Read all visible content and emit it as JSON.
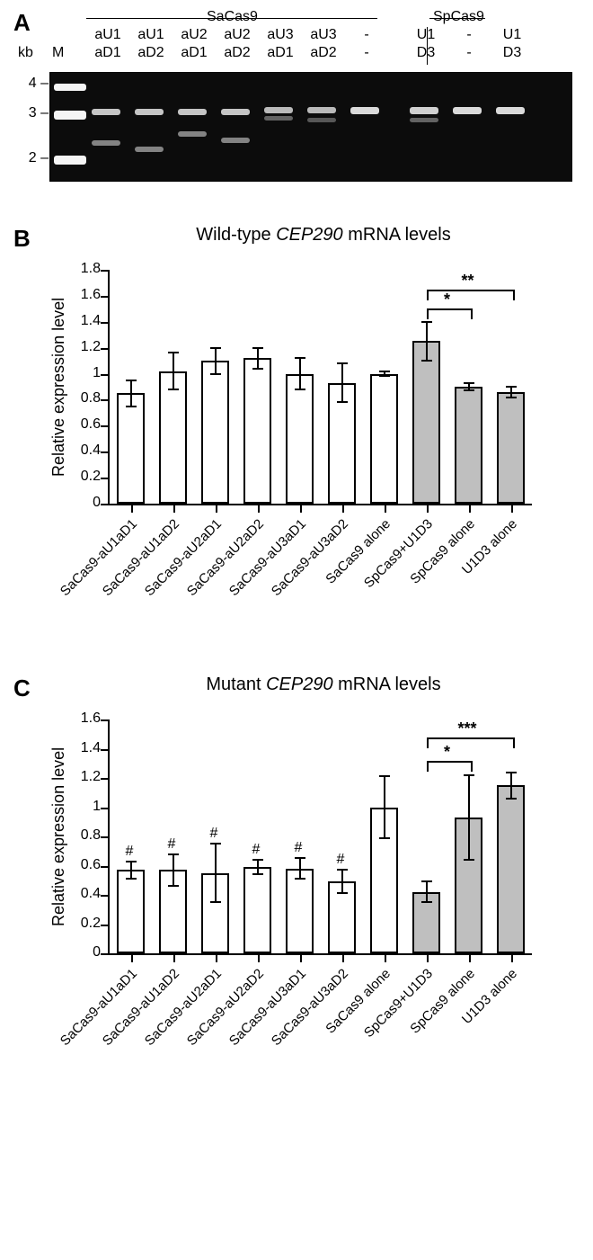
{
  "panelA": {
    "label": "A",
    "header_group_left": "SaCas9",
    "header_group_right": "SpCas9",
    "kb_label": "kb",
    "M_label": "M",
    "row2": [
      "aU1",
      "aU1",
      "aU2",
      "aU2",
      "aU3",
      "aU3",
      "-",
      "U1",
      "-",
      "U1"
    ],
    "row3": [
      "aD1",
      "aD2",
      "aD1",
      "aD2",
      "aD1",
      "aD2",
      "-",
      "D3",
      "-",
      "D3"
    ],
    "ladder_labels": [
      "4",
      "3",
      "2"
    ],
    "ladder_y": [
      12,
      45,
      95
    ],
    "lane_x_start": 42,
    "lane_width": 48,
    "bands": [
      {
        "lane": 1,
        "y": 40,
        "h": 7,
        "int": 0.85
      },
      {
        "lane": 1,
        "y": 75,
        "h": 6,
        "int": 0.55
      },
      {
        "lane": 2,
        "y": 40,
        "h": 7,
        "int": 0.85
      },
      {
        "lane": 2,
        "y": 82,
        "h": 6,
        "int": 0.55
      },
      {
        "lane": 3,
        "y": 40,
        "h": 7,
        "int": 0.85
      },
      {
        "lane": 3,
        "y": 65,
        "h": 6,
        "int": 0.55
      },
      {
        "lane": 4,
        "y": 40,
        "h": 7,
        "int": 0.85
      },
      {
        "lane": 4,
        "y": 72,
        "h": 6,
        "int": 0.55
      },
      {
        "lane": 5,
        "y": 38,
        "h": 7,
        "int": 0.8
      },
      {
        "lane": 5,
        "y": 48,
        "h": 5,
        "int": 0.4
      },
      {
        "lane": 6,
        "y": 38,
        "h": 7,
        "int": 0.8
      },
      {
        "lane": 6,
        "y": 50,
        "h": 5,
        "int": 0.35
      },
      {
        "lane": 7,
        "y": 38,
        "h": 8,
        "int": 0.95
      },
      {
        "lane": 8,
        "y": 38,
        "h": 8,
        "int": 0.9
      },
      {
        "lane": 8,
        "y": 50,
        "h": 5,
        "int": 0.4
      },
      {
        "lane": 9,
        "y": 38,
        "h": 8,
        "int": 0.95
      },
      {
        "lane": 10,
        "y": 38,
        "h": 8,
        "int": 0.95
      }
    ]
  },
  "panelB": {
    "label": "B",
    "title": "Wild-type CEP290 mRNA levels",
    "title_italic_word": "CEP290",
    "ylabel": "Relative expression level",
    "ylim": [
      0,
      1.8
    ],
    "ytick_step": 0.2,
    "categories": [
      "SaCas9-aU1aD1",
      "SaCas9-aU1aD2",
      "SaCas9-aU2aD1",
      "SaCas9-aU2aD2",
      "SaCas9-aU3aD1",
      "SaCas9-aU3aD2",
      "SaCas9 alone",
      "SpCas9+U1D3",
      "SpCas9 alone",
      "U1D3 alone"
    ],
    "values": [
      0.85,
      1.02,
      1.1,
      1.12,
      1.0,
      0.93,
      1.0,
      1.25,
      0.9,
      0.86
    ],
    "err": [
      0.1,
      0.14,
      0.1,
      0.08,
      0.12,
      0.15,
      0.02,
      0.15,
      0.03,
      0.04
    ],
    "bar_colors": [
      "#ffffff",
      "#ffffff",
      "#ffffff",
      "#ffffff",
      "#ffffff",
      "#ffffff",
      "#ffffff",
      "#bfbfbf",
      "#bfbfbf",
      "#bfbfbf"
    ],
    "sig": [
      {
        "from": 7,
        "to": 8,
        "label": "*",
        "y": 1.5
      },
      {
        "from": 7,
        "to": 9,
        "label": "**",
        "y": 1.65
      }
    ]
  },
  "panelC": {
    "label": "C",
    "title": "Mutant CEP290 mRNA levels",
    "title_italic_word": "CEP290",
    "ylabel": "Relative expression level",
    "ylim": [
      0,
      1.6
    ],
    "ytick_step": 0.2,
    "categories": [
      "SaCas9-aU1aD1",
      "SaCas9-aU1aD2",
      "SaCas9-aU2aD1",
      "SaCas9-aU2aD2",
      "SaCas9-aU3aD1",
      "SaCas9-aU3aD2",
      "SaCas9 alone",
      "SpCas9+U1D3",
      "SpCas9 alone",
      "U1D3 alone"
    ],
    "values": [
      0.57,
      0.57,
      0.55,
      0.59,
      0.58,
      0.49,
      1.0,
      0.42,
      0.93,
      1.15
    ],
    "err": [
      0.06,
      0.11,
      0.2,
      0.05,
      0.07,
      0.08,
      0.21,
      0.07,
      0.29,
      0.09
    ],
    "bar_colors": [
      "#ffffff",
      "#ffffff",
      "#ffffff",
      "#ffffff",
      "#ffffff",
      "#ffffff",
      "#ffffff",
      "#bfbfbf",
      "#bfbfbf",
      "#bfbfbf"
    ],
    "hash_indices": [
      0,
      1,
      2,
      3,
      4,
      5
    ],
    "sig": [
      {
        "from": 7,
        "to": 8,
        "label": "*",
        "y": 1.32
      },
      {
        "from": 7,
        "to": 9,
        "label": "***",
        "y": 1.48
      }
    ]
  },
  "style": {
    "bar_border_color": "#000000",
    "background_color": "#ffffff",
    "axis_color": "#000000",
    "label_fontsize": 15,
    "title_fontsize": 20,
    "ylabel_fontsize": 18
  }
}
